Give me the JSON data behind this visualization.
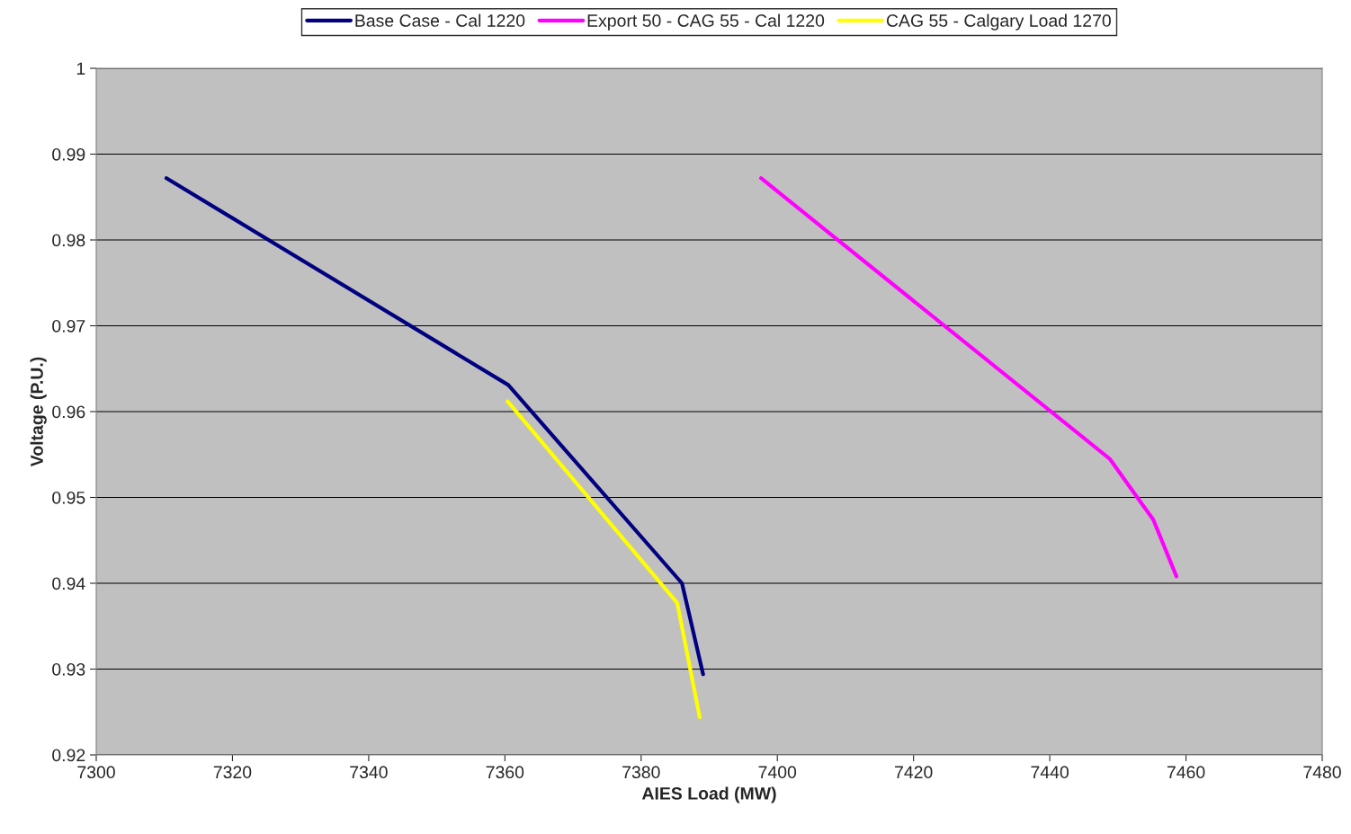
{
  "chart_data": {
    "type": "line",
    "xlabel": "AIES Load (MW)",
    "ylabel": "Voltage (P.U.)",
    "series": [
      {
        "name": "Base Case - Cal 1220",
        "color": "#000080",
        "x": [
          7310.3,
          7360.5,
          7386.0,
          7389.1
        ],
        "values": [
          0.9872,
          0.9631,
          0.94,
          0.9294
        ]
      },
      {
        "name": "Export 50 - CAG 55 - Cal 1220",
        "color": "#ff00ff",
        "x": [
          7397.6,
          7448.8,
          7455.2,
          7458.6
        ],
        "values": [
          0.9872,
          0.9545,
          0.9474,
          0.9408
        ]
      },
      {
        "name": "CAG 55 - Calgary Load 1270",
        "color": "#ffff00",
        "x": [
          7360.4,
          7385.3,
          7388.6
        ],
        "values": [
          0.9612,
          0.9377,
          0.9244
        ]
      }
    ],
    "xlim": [
      7300,
      7480
    ],
    "xticks": [
      7300,
      7320,
      7340,
      7360,
      7380,
      7400,
      7420,
      7440,
      7460,
      7480
    ],
    "ylim": [
      0.92,
      1
    ],
    "yticks": [
      0.92,
      0.93,
      0.94,
      0.95,
      0.96,
      0.97,
      0.98,
      0.99,
      1
    ],
    "grid": "y",
    "legend": "top",
    "marker": "none",
    "line_style": "solid"
  }
}
